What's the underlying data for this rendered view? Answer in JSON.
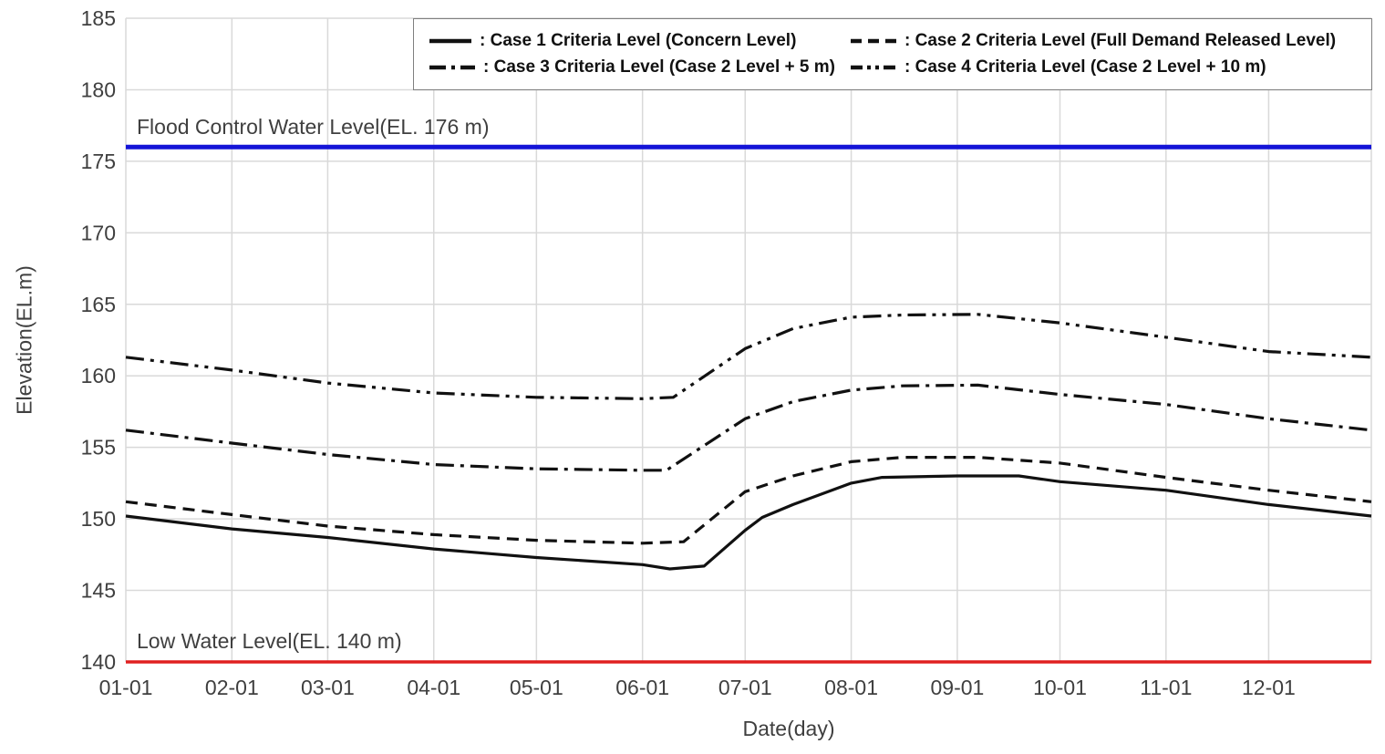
{
  "figure": {
    "background": "#ffffff",
    "grid_color": "#d9d9d9",
    "axis_text_color": "#3f3f3f",
    "series_color": "#111111"
  },
  "chart_data": {
    "type": "line",
    "title": "",
    "xlabel": "Date(day)",
    "ylabel": "Elevation(EL.m)",
    "ylim": [
      140,
      185
    ],
    "y_ticks": [
      140,
      145,
      150,
      155,
      160,
      165,
      170,
      175,
      180,
      185
    ],
    "x_ticks": [
      {
        "day": 1,
        "label": "01-01"
      },
      {
        "day": 32,
        "label": "02-01"
      },
      {
        "day": 60,
        "label": "03-01"
      },
      {
        "day": 91,
        "label": "04-01"
      },
      {
        "day": 121,
        "label": "05-01"
      },
      {
        "day": 152,
        "label": "06-01"
      },
      {
        "day": 182,
        "label": "07-01"
      },
      {
        "day": 213,
        "label": "08-01"
      },
      {
        "day": 244,
        "label": "09-01"
      },
      {
        "day": 274,
        "label": "10-01"
      },
      {
        "day": 305,
        "label": "11-01"
      },
      {
        "day": 335,
        "label": "12-01"
      }
    ],
    "x_range_days": [
      1,
      365
    ],
    "grid": true,
    "legend_position": "top-center-boxed",
    "series": [
      {
        "name": "case1",
        "legend_label": ": Case 1 Criteria Level (Concern Level)",
        "style": "solid",
        "color": "#111111",
        "points": [
          [
            1,
            150.2
          ],
          [
            32,
            149.3
          ],
          [
            60,
            148.7
          ],
          [
            91,
            147.9
          ],
          [
            121,
            147.3
          ],
          [
            152,
            146.8
          ],
          [
            160,
            146.5
          ],
          [
            170,
            146.7
          ],
          [
            182,
            149.2
          ],
          [
            187,
            150.1
          ],
          [
            196,
            151.0
          ],
          [
            213,
            152.5
          ],
          [
            222,
            152.9
          ],
          [
            244,
            153.0
          ],
          [
            262,
            153.0
          ],
          [
            274,
            152.6
          ],
          [
            305,
            152.0
          ],
          [
            335,
            151.0
          ],
          [
            365,
            150.2
          ]
        ]
      },
      {
        "name": "case2",
        "legend_label": ": Case 2 Criteria Level (Full Demand Released Level)",
        "style": "dashed",
        "color": "#111111",
        "points": [
          [
            1,
            151.2
          ],
          [
            32,
            150.3
          ],
          [
            60,
            149.5
          ],
          [
            91,
            148.9
          ],
          [
            121,
            148.5
          ],
          [
            152,
            148.3
          ],
          [
            164,
            148.4
          ],
          [
            182,
            151.9
          ],
          [
            196,
            153.0
          ],
          [
            213,
            154.0
          ],
          [
            228,
            154.3
          ],
          [
            250,
            154.3
          ],
          [
            274,
            153.9
          ],
          [
            305,
            152.9
          ],
          [
            335,
            152.0
          ],
          [
            365,
            151.2
          ]
        ]
      },
      {
        "name": "case3",
        "legend_label": ": Case 3 Criteria Level (Case 2 Level + 5 m)",
        "style": "dash-dot",
        "color": "#111111",
        "points": [
          [
            1,
            156.2
          ],
          [
            32,
            155.3
          ],
          [
            60,
            154.5
          ],
          [
            91,
            153.8
          ],
          [
            121,
            153.5
          ],
          [
            152,
            153.4
          ],
          [
            159,
            153.4
          ],
          [
            182,
            157.0
          ],
          [
            196,
            158.2
          ],
          [
            213,
            159.0
          ],
          [
            228,
            159.3
          ],
          [
            250,
            159.35
          ],
          [
            274,
            158.7
          ],
          [
            305,
            158.0
          ],
          [
            335,
            157.0
          ],
          [
            365,
            156.2
          ]
        ]
      },
      {
        "name": "case4",
        "legend_label": ": Case 4 Criteria Level (Case 2 Level + 10 m)",
        "style": "dash-dot-dot",
        "color": "#111111",
        "points": [
          [
            1,
            161.3
          ],
          [
            32,
            160.4
          ],
          [
            60,
            159.5
          ],
          [
            91,
            158.8
          ],
          [
            121,
            158.5
          ],
          [
            152,
            158.4
          ],
          [
            161,
            158.5
          ],
          [
            182,
            161.9
          ],
          [
            196,
            163.3
          ],
          [
            213,
            164.1
          ],
          [
            228,
            164.25
          ],
          [
            250,
            164.3
          ],
          [
            274,
            163.7
          ],
          [
            305,
            162.7
          ],
          [
            335,
            161.7
          ],
          [
            365,
            161.3
          ]
        ]
      }
    ],
    "reference_lines": [
      {
        "name": "flood-control",
        "label": "Flood Control Water Level(EL. 176 m)",
        "value": 176,
        "color": "#1414d7",
        "width": 5
      },
      {
        "name": "low-water",
        "label": "Low Water Level(EL. 140 m)",
        "value": 140,
        "color": "#e02020",
        "width": 3.5
      }
    ]
  }
}
